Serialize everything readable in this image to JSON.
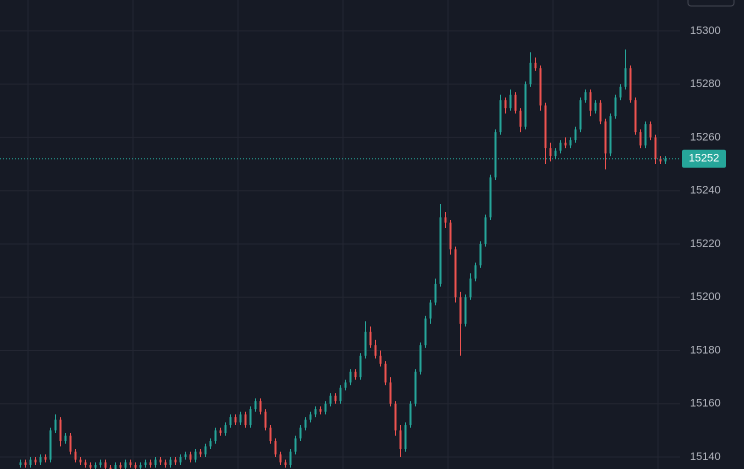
{
  "chart_data": {
    "type": "candlestick",
    "up_color": "#26a69a",
    "down_color": "#ef5350",
    "ylim": [
      15135.5,
      15311.6
    ],
    "yticks": [
      15140,
      15160,
      15180,
      15200,
      15220,
      15240,
      15260,
      15280,
      15300
    ],
    "grid": true,
    "last_price": 15252,
    "last_price_color": "#26a69a",
    "candles": [
      [
        15137,
        15139,
        15136,
        15138
      ],
      [
        15138,
        15139,
        15136,
        15137
      ],
      [
        15137,
        15140,
        15136,
        15139
      ],
      [
        15139,
        15140,
        15137,
        15138
      ],
      [
        15138,
        15141,
        15137,
        15140
      ],
      [
        15140,
        15141,
        15138,
        15139
      ],
      [
        15139,
        15151,
        15138,
        15150
      ],
      [
        15150,
        15156,
        15149,
        15154
      ],
      [
        15154,
        15155,
        15144,
        15146
      ],
      [
        15146,
        15149,
        15145,
        15148
      ],
      [
        15148,
        15149,
        15141,
        15142
      ],
      [
        15142,
        15143,
        15138,
        15139
      ],
      [
        15139,
        15140,
        15137,
        15138
      ],
      [
        15138,
        15139,
        15136,
        15137
      ],
      [
        15137,
        15138,
        15135,
        15136
      ],
      [
        15136,
        15138,
        15135,
        15137
      ],
      [
        15137,
        15139,
        15136,
        15138
      ],
      [
        15138,
        15139,
        15135,
        15136
      ],
      [
        15136,
        15137,
        15134,
        15135
      ],
      [
        15135,
        15138,
        15134,
        15137
      ],
      [
        15137,
        15138,
        15135,
        15136
      ],
      [
        15136,
        15139,
        15135,
        15138
      ],
      [
        15138,
        15139,
        15136,
        15137
      ],
      [
        15137,
        15138,
        15135,
        15136
      ],
      [
        15136,
        15138,
        15135,
        15137
      ],
      [
        15137,
        15139,
        15136,
        15138
      ],
      [
        15138,
        15139,
        15136,
        15137
      ],
      [
        15137,
        15140,
        15136,
        15139
      ],
      [
        15139,
        15140,
        15137,
        15138
      ],
      [
        15138,
        15139,
        15136,
        15137
      ],
      [
        15137,
        15140,
        15136,
        15139
      ],
      [
        15139,
        15140,
        15137,
        15138
      ],
      [
        15138,
        15141,
        15137,
        15140
      ],
      [
        15140,
        15142,
        15139,
        15141
      ],
      [
        15141,
        15142,
        15138,
        15139
      ],
      [
        15139,
        15143,
        15138,
        15142
      ],
      [
        15142,
        15143,
        15140,
        15141
      ],
      [
        15141,
        15145,
        15140,
        15144
      ],
      [
        15144,
        15147,
        15143,
        15146
      ],
      [
        15146,
        15151,
        15145,
        15150
      ],
      [
        15150,
        15151,
        15148,
        15149
      ],
      [
        15149,
        15153,
        15148,
        15152
      ],
      [
        15152,
        15156,
        15151,
        15155
      ],
      [
        15155,
        15156,
        15152,
        15153
      ],
      [
        15153,
        15157,
        15152,
        15156
      ],
      [
        15156,
        15157,
        15151,
        15152
      ],
      [
        15152,
        15159,
        15151,
        15158
      ],
      [
        15158,
        15162,
        15157,
        15161
      ],
      [
        15161,
        15162,
        15156,
        15157
      ],
      [
        15157,
        15158,
        15150,
        15151
      ],
      [
        15151,
        15152,
        15145,
        15146
      ],
      [
        15146,
        15147,
        15140,
        15141
      ],
      [
        15141,
        15142,
        15137,
        15138
      ],
      [
        15138,
        15139,
        15136,
        15137
      ],
      [
        15137,
        15143,
        15136,
        15142
      ],
      [
        15142,
        15148,
        15141,
        15147
      ],
      [
        15147,
        15152,
        15146,
        15151
      ],
      [
        15151,
        15155,
        15150,
        15154
      ],
      [
        15154,
        15157,
        15153,
        15156
      ],
      [
        15156,
        15159,
        15155,
        15158
      ],
      [
        15158,
        15159,
        15156,
        15157
      ],
      [
        15157,
        15161,
        15156,
        15160
      ],
      [
        15160,
        15164,
        15159,
        15163
      ],
      [
        15163,
        15164,
        15160,
        15161
      ],
      [
        15161,
        15167,
        15160,
        15166
      ],
      [
        15166,
        15169,
        15165,
        15168
      ],
      [
        15168,
        15173,
        15167,
        15172
      ],
      [
        15172,
        15173,
        15169,
        15170
      ],
      [
        15170,
        15179,
        15169,
        15178
      ],
      [
        15178,
        15191,
        15177,
        15187
      ],
      [
        15187,
        15189,
        15181,
        15182
      ],
      [
        15182,
        15184,
        15177,
        15178
      ],
      [
        15178,
        15180,
        15174,
        15175
      ],
      [
        15175,
        15176,
        15167,
        15168
      ],
      [
        15168,
        15170,
        15159,
        15160
      ],
      [
        15160,
        15161,
        15148,
        15150
      ],
      [
        15150,
        15152,
        15140,
        15143
      ],
      [
        15143,
        15153,
        15142,
        15152
      ],
      [
        15152,
        15161,
        15151,
        15160
      ],
      [
        15160,
        15173,
        15159,
        15172
      ],
      [
        15172,
        15183,
        15171,
        15182
      ],
      [
        15182,
        15193,
        15181,
        15192
      ],
      [
        15192,
        15199,
        15190,
        15198
      ],
      [
        15198,
        15207,
        15197,
        15205
      ],
      [
        15205,
        15235,
        15204,
        15230
      ],
      [
        15230,
        15232,
        15226,
        15228
      ],
      [
        15228,
        15229,
        15216,
        15218
      ],
      [
        15218,
        15219,
        15198,
        15200
      ],
      [
        15200,
        15202,
        15178,
        15190
      ],
      [
        15190,
        15201,
        15189,
        15200
      ],
      [
        15200,
        15209,
        15199,
        15207
      ],
      [
        15207,
        15213,
        15206,
        15212
      ],
      [
        15212,
        15221,
        15211,
        15220
      ],
      [
        15220,
        15231,
        15219,
        15230
      ],
      [
        15230,
        15246,
        15229,
        15245
      ],
      [
        15245,
        15263,
        15244,
        15262
      ],
      [
        15262,
        15276,
        15261,
        15274
      ],
      [
        15274,
        15275,
        15269,
        15271
      ],
      [
        15271,
        15278,
        15270,
        15276
      ],
      [
        15276,
        15277,
        15269,
        15270
      ],
      [
        15270,
        15271,
        15262,
        15264
      ],
      [
        15264,
        15281,
        15263,
        15280
      ],
      [
        15280,
        15292,
        15279,
        15288
      ],
      [
        15288,
        15290,
        15285,
        15286
      ],
      [
        15286,
        15287,
        15270,
        15272
      ],
      [
        15272,
        15273,
        15250,
        15256
      ],
      [
        15256,
        15258,
        15251,
        15253
      ],
      [
        15253,
        15256,
        15252,
        15255
      ],
      [
        15255,
        15259,
        15254,
        15258
      ],
      [
        15258,
        15260,
        15256,
        15257
      ],
      [
        15257,
        15260,
        15256,
        15259
      ],
      [
        15259,
        15264,
        15258,
        15263
      ],
      [
        15263,
        15275,
        15262,
        15274
      ],
      [
        15274,
        15278,
        15273,
        15277
      ],
      [
        15277,
        15278,
        15268,
        15270
      ],
      [
        15270,
        15274,
        15269,
        15273
      ],
      [
        15273,
        15274,
        15265,
        15266
      ],
      [
        15266,
        15267,
        15248,
        15254
      ],
      [
        15254,
        15269,
        15253,
        15268
      ],
      [
        15268,
        15276,
        15267,
        15275
      ],
      [
        15275,
        15280,
        15274,
        15279
      ],
      [
        15279,
        15293,
        15278,
        15286
      ],
      [
        15286,
        15287,
        15273,
        15274
      ],
      [
        15274,
        15275,
        15261,
        15262
      ],
      [
        15262,
        15263,
        15256,
        15257
      ],
      [
        15257,
        15266,
        15256,
        15265
      ],
      [
        15265,
        15266,
        15259,
        15260
      ],
      [
        15260,
        15261,
        15250,
        15252
      ],
      [
        15252,
        15253,
        15250,
        15251
      ],
      [
        15251,
        15253,
        15250,
        15252
      ]
    ]
  }
}
